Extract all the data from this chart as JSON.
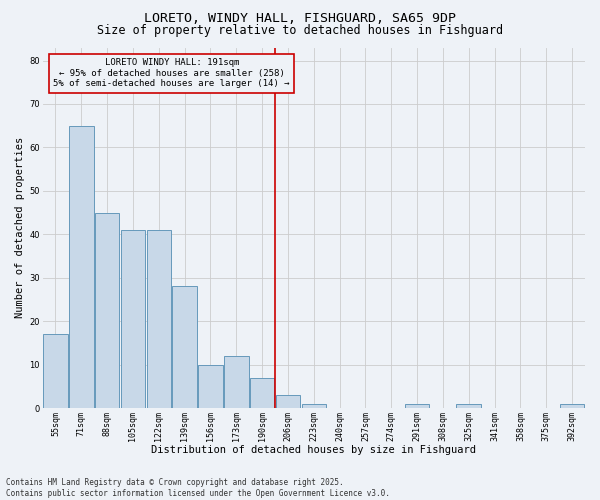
{
  "title": "LORETO, WINDY HALL, FISHGUARD, SA65 9DP",
  "subtitle": "Size of property relative to detached houses in Fishguard",
  "xlabel": "Distribution of detached houses by size in Fishguard",
  "ylabel": "Number of detached properties",
  "categories": [
    "55sqm",
    "71sqm",
    "88sqm",
    "105sqm",
    "122sqm",
    "139sqm",
    "156sqm",
    "173sqm",
    "190sqm",
    "206sqm",
    "223sqm",
    "240sqm",
    "257sqm",
    "274sqm",
    "291sqm",
    "308sqm",
    "325sqm",
    "341sqm",
    "358sqm",
    "375sqm",
    "392sqm"
  ],
  "values": [
    17,
    65,
    45,
    41,
    41,
    28,
    10,
    12,
    7,
    3,
    1,
    0,
    0,
    0,
    1,
    0,
    1,
    0,
    0,
    0,
    1
  ],
  "bar_color": "#c8d8e8",
  "bar_edge_color": "#6699bb",
  "grid_color": "#cccccc",
  "background_color": "#eef2f7",
  "vline_x": 8.5,
  "vline_color": "#cc0000",
  "annotation_text": "LORETO WINDY HALL: 191sqm\n← 95% of detached houses are smaller (258)\n5% of semi-detached houses are larger (14) →",
  "annotation_box_color": "#cc0000",
  "ylim": [
    0,
    83
  ],
  "yticks": [
    0,
    10,
    20,
    30,
    40,
    50,
    60,
    70,
    80
  ],
  "footnote": "Contains HM Land Registry data © Crown copyright and database right 2025.\nContains public sector information licensed under the Open Government Licence v3.0.",
  "title_fontsize": 9.5,
  "subtitle_fontsize": 8.5,
  "xlabel_fontsize": 7.5,
  "ylabel_fontsize": 7.5,
  "tick_fontsize": 6,
  "annotation_fontsize": 6.5,
  "footnote_fontsize": 5.5
}
